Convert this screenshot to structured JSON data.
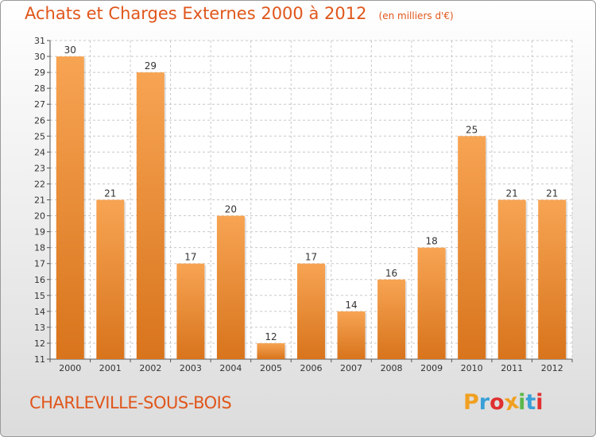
{
  "title": "Achats et Charges Externes 2000 à 2012",
  "subtitle": "(en milliers d'€)",
  "city": "CHARLEVILLE-SOUS-BOIS",
  "logo": {
    "text": "Proxiti",
    "letters": [
      "P",
      "r",
      "o",
      "x",
      "i",
      "t",
      "i"
    ],
    "colors": [
      "#f0a020",
      "#3aa0d8",
      "#e03030",
      "#f0a020",
      "#5cb84a",
      "#3aa0d8",
      "#e03030"
    ]
  },
  "colors": {
    "accent": "#e0561b",
    "bar_light": "#f7a453",
    "bar_dark": "#d8741c",
    "grid": "#c8c8c8"
  },
  "chart_data": {
    "type": "bar",
    "categories": [
      "2000",
      "2001",
      "2002",
      "2003",
      "2004",
      "2005",
      "2006",
      "2007",
      "2008",
      "2009",
      "2010",
      "2011",
      "2012"
    ],
    "values": [
      30,
      21,
      29,
      17,
      20,
      12,
      17,
      14,
      16,
      18,
      25,
      21,
      21
    ],
    "ylim": [
      11,
      31
    ],
    "yticks": [
      11,
      12,
      13,
      14,
      15,
      16,
      17,
      18,
      19,
      20,
      21,
      22,
      23,
      24,
      25,
      26,
      27,
      28,
      29,
      30,
      31
    ],
    "grid": true,
    "title": "Achats et Charges Externes 2000 à 2012",
    "subtitle": "(en milliers d'€)",
    "xlabel": "",
    "ylabel": ""
  }
}
